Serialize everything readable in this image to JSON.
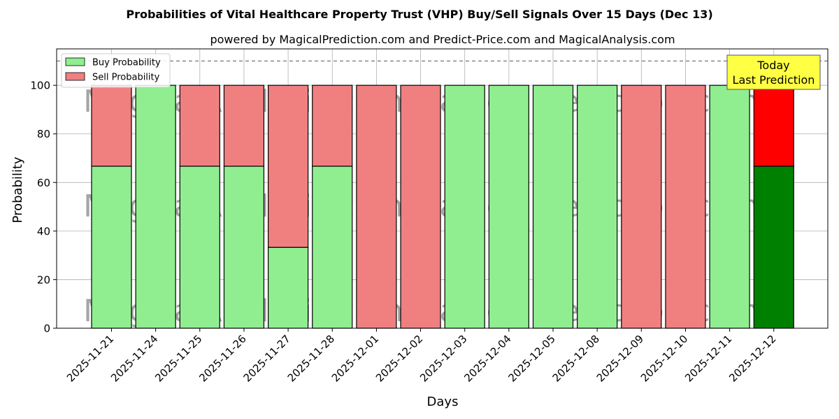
{
  "chart_data": {
    "type": "bar",
    "title": "Probabilities of Vital Healthcare Property Trust (VHP) Buy/Sell Signals Over 15 Days (Dec 13)",
    "subtitle": "powered by MagicalPrediction.com and Predict-Price.com and MagicalAnalysis.com",
    "xlabel": "Days",
    "ylabel": "Probability",
    "ylim": [
      0,
      115
    ],
    "yticks": [
      "0",
      "20",
      "40",
      "60",
      "80",
      "100"
    ],
    "reference_line": 110,
    "grid": true,
    "legend_position": "top-left",
    "categories": [
      "2025-11-21",
      "2025-11-24",
      "2025-11-25",
      "2025-11-26",
      "2025-11-27",
      "2025-11-28",
      "2025-12-01",
      "2025-12-02",
      "2025-12-03",
      "2025-12-04",
      "2025-12-05",
      "2025-12-08",
      "2025-12-09",
      "2025-12-10",
      "2025-12-11",
      "2025-12-12"
    ],
    "series": [
      {
        "name": "Buy Probability",
        "color": "#90ee90",
        "highlight_color": "#008000",
        "values": [
          66.7,
          100,
          66.7,
          66.7,
          33.3,
          66.7,
          0,
          0,
          100,
          100,
          100,
          100,
          0,
          0,
          100,
          66.7
        ]
      },
      {
        "name": "Sell Probability",
        "color": "#f08080",
        "highlight_color": "#ff0000",
        "values": [
          33.3,
          0,
          33.3,
          33.3,
          66.7,
          33.3,
          100,
          100,
          0,
          0,
          0,
          0,
          100,
          100,
          0,
          33.3
        ]
      }
    ],
    "highlight_index": 15,
    "annotation": [
      "Today",
      "Last Prediction"
    ],
    "annotation_color": "#ffff44",
    "watermarks": [
      "MagicalAnalysis.com",
      "MagicalPrediction.com"
    ]
  }
}
